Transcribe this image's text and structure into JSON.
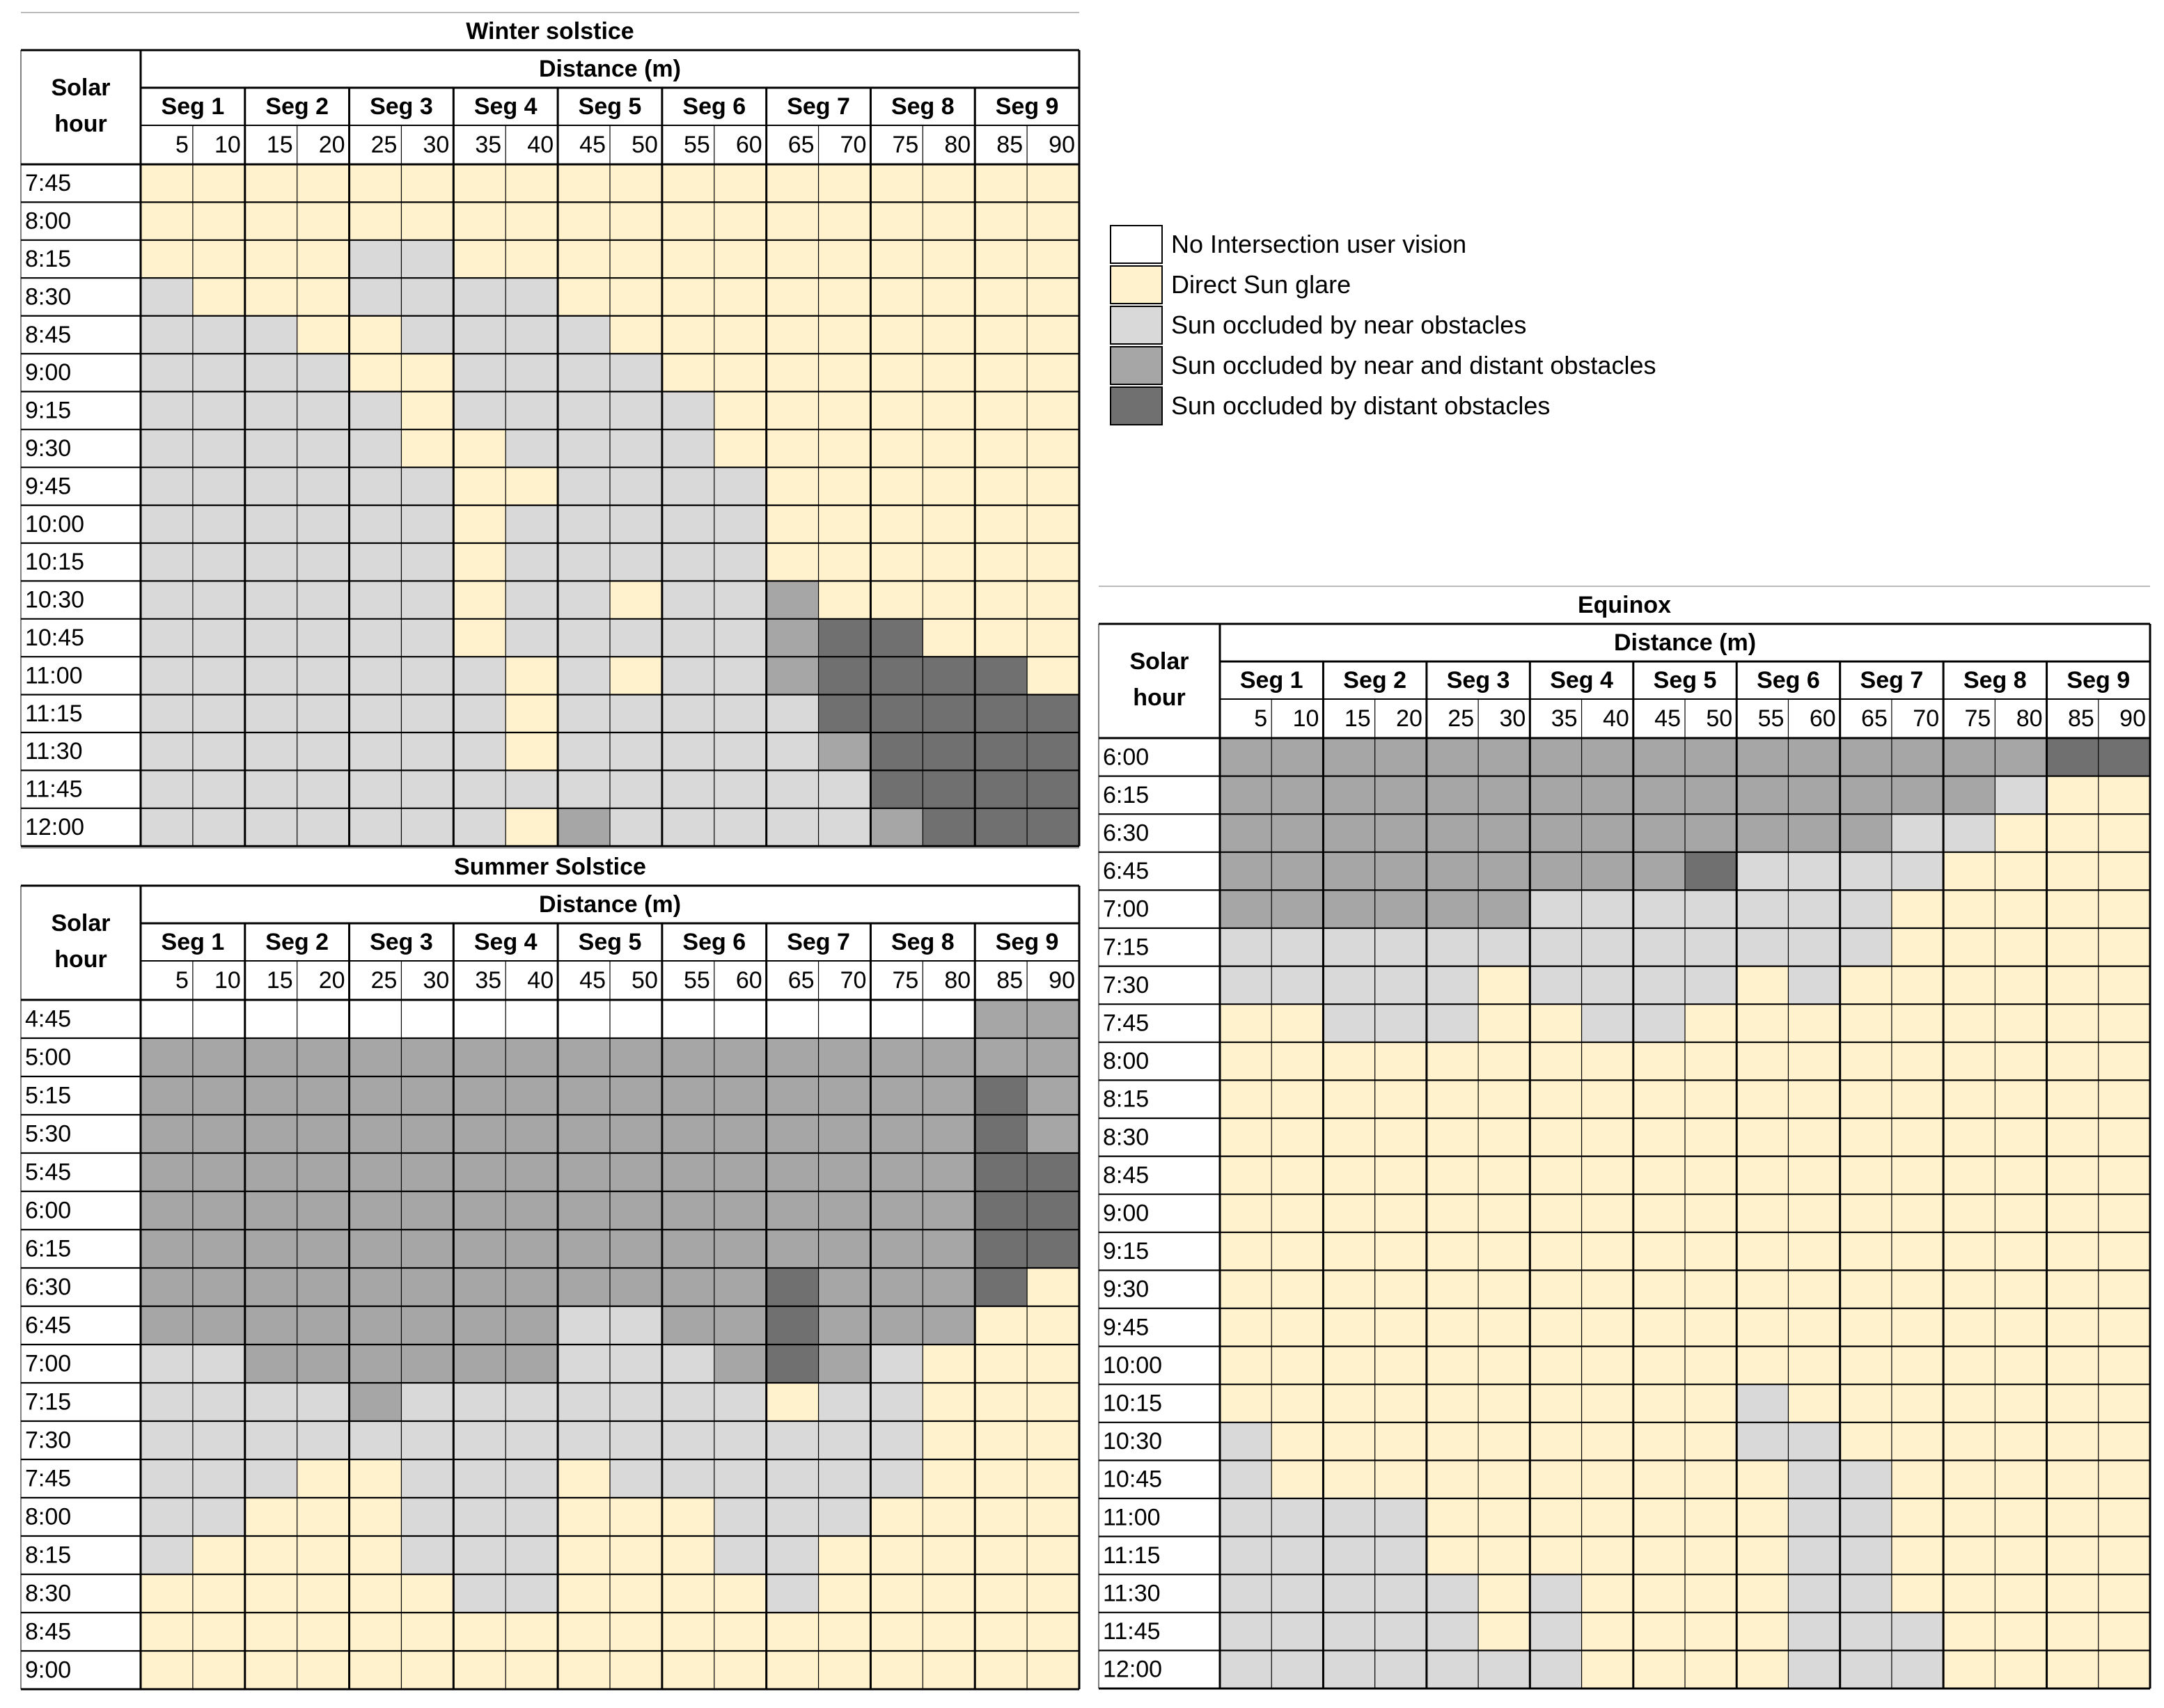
{
  "legend": {
    "items": [
      {
        "code": "N",
        "label": "No Intersection user vision",
        "color": "#ffffff"
      },
      {
        "code": "Y",
        "label": "Direct Sun glare",
        "color": "#fff2cc"
      },
      {
        "code": "L",
        "label": "Sun occluded by near obstacles",
        "color": "#d9d9d9"
      },
      {
        "code": "M",
        "label": "Sun occluded by near and distant obstacles",
        "color": "#a6a6a6"
      },
      {
        "code": "D",
        "label": "Sun occluded by distant obstacles",
        "color": "#707070"
      }
    ]
  },
  "chart_data": [
    {
      "type": "heatmap",
      "title": "Winter solstice",
      "row_header": "Solar hour",
      "distance_header": "Distance (m)",
      "segments": [
        "Seg 1",
        "Seg 2",
        "Seg 3",
        "Seg 4",
        "Seg 5",
        "Seg 6",
        "Seg 7",
        "Seg 8",
        "Seg 9"
      ],
      "distances": [
        "5",
        "10",
        "15",
        "20",
        "25",
        "30",
        "35",
        "40",
        "45",
        "50",
        "55",
        "60",
        "65",
        "70",
        "75",
        "80",
        "85",
        "90"
      ],
      "hours": [
        "7:45",
        "8:00",
        "8:15",
        "8:30",
        "8:45",
        "9:00",
        "9:15",
        "9:30",
        "9:45",
        "10:00",
        "10:15",
        "10:30",
        "10:45",
        "11:00",
        "11:15",
        "11:30",
        "11:45",
        "12:00"
      ],
      "cells": [
        "YYYYYYYYYYYYYYYYYY",
        "YYYYYYYYYYYYYYYYYY",
        "YYYYLLYYYYYYYYYYYY",
        "LYYYLLLLYYYYYYYYYY",
        "LLLYYLLLLYYYYYYYYY",
        "LLLLYYLLLLYYYYYYYY",
        "LLLLLYLLLLLYYYYYYY",
        "LLLLLYYLLLLYYYYYYY",
        "LLLLLLYYLLLLYYYYYY",
        "LLLLLLYLLLLLYYYYYY",
        "LLLLLLYLLLLLYYYYYY",
        "LLLLLLYLLYLLMYYYYY",
        "LLLLLLYLLLLLMDDYYY",
        "LLLLLLLYLYLLMDDDDY",
        "LLLLLLLYLLLLLDDDDD",
        "LLLLLLLYLLLLLMDDDD",
        "LLLLLLLLLLLLLLDDDD",
        "LLLLLLLYMLLLLLMDDD"
      ]
    },
    {
      "type": "heatmap",
      "title": "Summer Solstice",
      "row_header": "Solar hour",
      "distance_header": "Distance (m)",
      "segments": [
        "Seg 1",
        "Seg 2",
        "Seg 3",
        "Seg 4",
        "Seg 5",
        "Seg 6",
        "Seg 7",
        "Seg 8",
        "Seg 9"
      ],
      "distances": [
        "5",
        "10",
        "15",
        "20",
        "25",
        "30",
        "35",
        "40",
        "45",
        "50",
        "55",
        "60",
        "65",
        "70",
        "75",
        "80",
        "85",
        "90"
      ],
      "hours": [
        "4:45",
        "5:00",
        "5:15",
        "5:30",
        "5:45",
        "6:00",
        "6:15",
        "6:30",
        "6:45",
        "7:00",
        "7:15",
        "7:30",
        "7:45",
        "8:00",
        "8:15",
        "8:30",
        "8:45",
        "9:00"
      ],
      "cells": [
        "NNNNNNNNNNNNNNNNMM",
        "MMMMMMMMMMMMMMMMMM",
        "MMMMMMMMMMMMMMMMDM",
        "MMMMMMMMMMMMMMMMDM",
        "MMMMMMMMMMMMMMMMDD",
        "MMMMMMMMMMMMMMMMDD",
        "MMMMMMMMMMMMMMMMDD",
        "MMMMMMMMMMMMDMMMDY",
        "MMMMMMMMLLMMDMMMYY",
        "LLMMMMMMLLLMDMLYYY",
        "LLLLMLLLLLLLYLLYYY",
        "LLLLLLLLLLLLLLLYYY",
        "LLLYYLLLYLLLLLLYYY",
        "LLYYYLLLYYYLLLYYYY",
        "LYYYYLLLYYYLLYYYYY",
        "YYYYYYLLYYYYLYYYYY",
        "YYYYYYYYYYYYYYYYYY",
        "YYYYYYYYYYYYYYYYYY"
      ]
    },
    {
      "type": "heatmap",
      "title": "Equinox",
      "row_header": "Solar hour",
      "distance_header": "Distance (m)",
      "segments": [
        "Seg 1",
        "Seg 2",
        "Seg 3",
        "Seg 4",
        "Seg 5",
        "Seg 6",
        "Seg 7",
        "Seg 8",
        "Seg 9"
      ],
      "distances": [
        "5",
        "10",
        "15",
        "20",
        "25",
        "30",
        "35",
        "40",
        "45",
        "50",
        "55",
        "60",
        "65",
        "70",
        "75",
        "80",
        "85",
        "90"
      ],
      "hours": [
        "6:00",
        "6:15",
        "6:30",
        "6:45",
        "7:00",
        "7:15",
        "7:30",
        "7:45",
        "8:00",
        "8:15",
        "8:30",
        "8:45",
        "9:00",
        "9:15",
        "9:30",
        "9:45",
        "10:00",
        "10:15",
        "10:30",
        "10:45",
        "11:00",
        "11:15",
        "11:30",
        "11:45",
        "12:00"
      ],
      "cells": [
        "MMMMMMMMMMMMMMMMDD",
        "MMMMMMMMMMMMMMMLYY",
        "MMMMMMMMMMMMMLLYYY",
        "MMMMMMMMMDLLLLYYYY",
        "MMMMMMLLLLLLLYYYYY",
        "LLLLLLLLLLLLLYYYYY",
        "LLLLLYLLLLYLYYYYYY",
        "YYLLLYYLLYYYYYYYYY",
        "YYYYYYYYYYYYYYYYYY",
        "YYYYYYYYYYYYYYYYYY",
        "YYYYYYYYYYYYYYYYYY",
        "YYYYYYYYYYYYYYYYYY",
        "YYYYYYYYYYYYYYYYYY",
        "YYYYYYYYYYYYYYYYYY",
        "YYYYYYYYYYYYYYYYYY",
        "YYYYYYYYYYYYYYYYYY",
        "YYYYYYYYYYYYYYYYYY",
        "YYYYYYYYYYLYYYYYYY",
        "LYYYYYYYYYLLYYYYYY",
        "LYYYYYYYYYYLLYYYYY",
        "LLLLYYYYYYYLLYYYYY",
        "LLLLYYYYYYYLLYYYYY",
        "LLLLLYLYYYYLLYYYYY",
        "LLLLLYLYYYYLLLYYYY",
        "LLLLLLLYYYYLLLYYYY"
      ]
    }
  ]
}
